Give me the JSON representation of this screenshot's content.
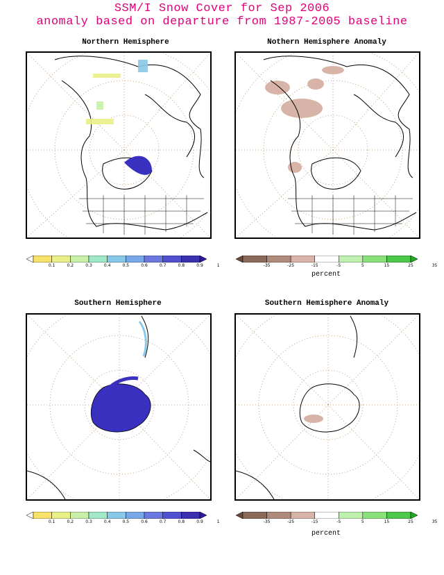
{
  "header": {
    "title_line1": "SSM/I Snow Cover for Sep 2006",
    "title_line2": "anomaly based on departure from 1987-2005 baseline",
    "color": "#e0007a"
  },
  "panels": [
    {
      "id": "nh",
      "title": "Northern Hemisphere"
    },
    {
      "id": "nha",
      "title": "Nothern Hemisphere Anomaly"
    },
    {
      "id": "sh",
      "title": "Southern Hemisphere"
    },
    {
      "id": "sha",
      "title": "Southern Hemisphere Anomaly"
    }
  ],
  "cover_colorbar": {
    "ticks": [
      "0.1",
      "0.2",
      "0.3",
      "0.4",
      "0.5",
      "0.6",
      "0.7",
      "0.8",
      "0.9",
      "1"
    ],
    "colors": [
      "#ffffff",
      "#f7e26a",
      "#e9f088",
      "#c8f0a8",
      "#a0e8c8",
      "#88c8e8",
      "#78a8e8",
      "#6a78e0",
      "#5050d0",
      "#3a30b0",
      "#2a1aa0"
    ]
  },
  "anomaly_colorbar": {
    "ticks": [
      "-35",
      "-25",
      "-15",
      "-5",
      "5",
      "15",
      "25",
      "35"
    ],
    "colors": [
      "#6a4a3a",
      "#8c6a5a",
      "#b08a7a",
      "#d8b4a8",
      "#ffffff",
      "#bff0b0",
      "#8ae07a",
      "#4cc84a",
      "#22aa22"
    ],
    "unit": "percent"
  },
  "icons": {
    "map_features": [
      "coastline",
      "graticule",
      "us-state-borders"
    ]
  }
}
